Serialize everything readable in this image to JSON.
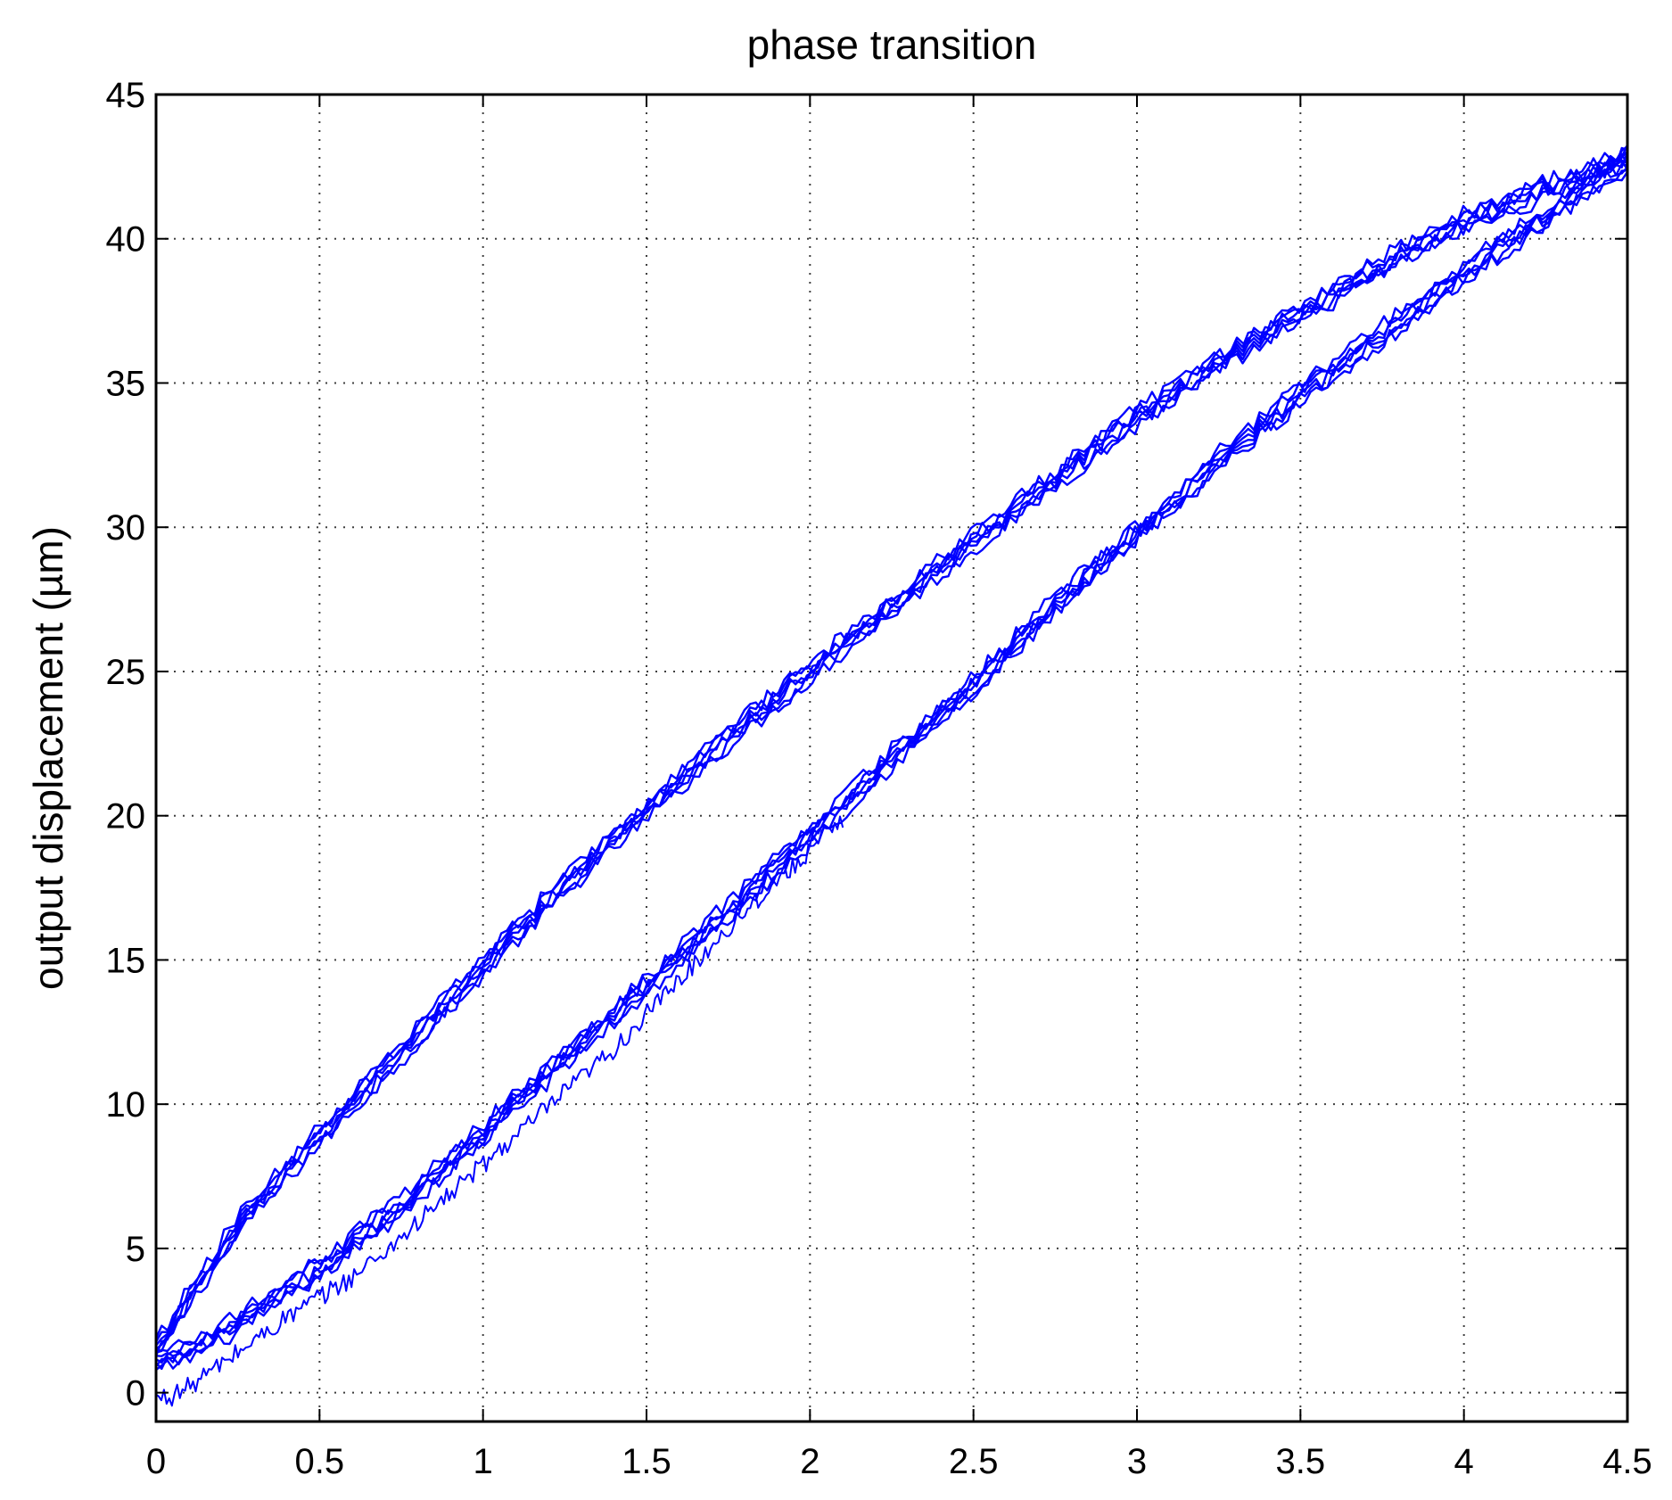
{
  "chart_data": {
    "type": "line",
    "title": "phase transition",
    "xlabel": "",
    "ylabel": "output displacement (µm)",
    "xlim": [
      0,
      4.5
    ],
    "ylim": [
      -1,
      45
    ],
    "xticks": [
      0,
      0.5,
      1,
      1.5,
      2,
      2.5,
      3,
      3.5,
      4,
      4.5
    ],
    "yticks": [
      0,
      5,
      10,
      15,
      20,
      25,
      30,
      35,
      40,
      45
    ],
    "grid": true,
    "legend": "none",
    "colors": {
      "series": "#0000ff"
    },
    "series": [
      {
        "role": "upper-branch",
        "x": [
          0,
          0.1,
          0.25,
          0.5,
          0.75,
          1,
          1.25,
          1.5,
          1.75,
          2,
          2.25,
          2.5,
          2.75,
          3,
          3.25,
          3.5,
          3.75,
          4,
          4.25,
          4.5
        ],
        "y": [
          1.5,
          3.3,
          5.8,
          8.9,
          11.8,
          14.8,
          17.6,
          20.2,
          22.7,
          25.0,
          27.3,
          29.5,
          31.7,
          33.8,
          35.7,
          37.4,
          39.1,
          40.6,
          41.7,
          42.8
        ]
      },
      {
        "role": "lower-branch",
        "x": [
          0,
          0.1,
          0.25,
          0.5,
          0.75,
          1,
          1.25,
          1.5,
          1.75,
          2,
          2.25,
          2.5,
          2.75,
          3,
          3.25,
          3.5,
          3.75,
          4,
          4.25,
          4.4,
          4.5
        ],
        "y": [
          1.0,
          1.5,
          2.4,
          4.3,
          6.5,
          9.0,
          11.6,
          14.1,
          16.7,
          19.3,
          22.0,
          24.5,
          27.3,
          29.8,
          32.3,
          34.6,
          36.7,
          38.8,
          40.8,
          42.0,
          42.7
        ]
      },
      {
        "role": "initial-curve",
        "x": [
          0,
          0.05,
          0.1,
          0.2,
          0.3,
          0.4,
          0.5,
          0.6,
          0.7,
          0.8,
          0.9,
          1.0,
          1.2,
          1.4,
          1.6,
          1.8,
          2.0,
          2.1
        ],
        "y": [
          -0.2,
          -0.1,
          0.2,
          1.0,
          1.8,
          2.6,
          3.3,
          4.0,
          4.9,
          5.9,
          6.9,
          7.9,
          9.9,
          11.9,
          14.3,
          16.7,
          18.8,
          19.8
        ]
      }
    ]
  }
}
